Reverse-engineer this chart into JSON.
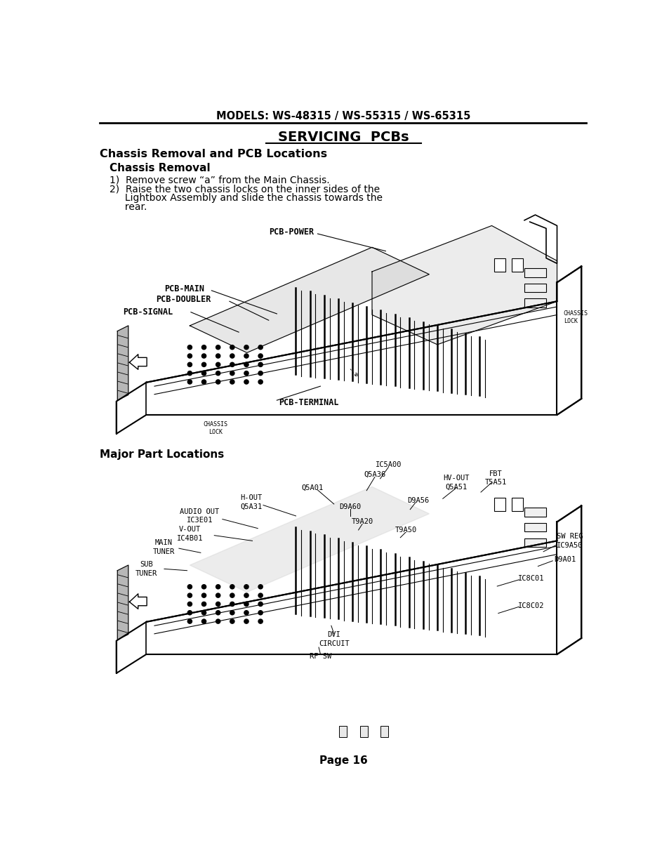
{
  "page_header": "MODELS: WS-48315 / WS-55315 / WS-65315",
  "main_title": "SERVICING  PCBs",
  "section_title": "Chassis Removal and PCB Locations",
  "subsection1": "Chassis Removal",
  "step1": "1)  Remove screw “a” from the Main Chassis.",
  "step2_line1": "2)  Raise the two chassis locks on the inner sides of the",
  "step2_line2": "     Lightbox Assembly and slide the chassis towards the",
  "step2_line3": "     rear.",
  "section2": "Major Part Locations",
  "page_footer": "Page 16",
  "bg_color": "#ffffff",
  "text_color": "#000000",
  "header_line_color": "#000000"
}
